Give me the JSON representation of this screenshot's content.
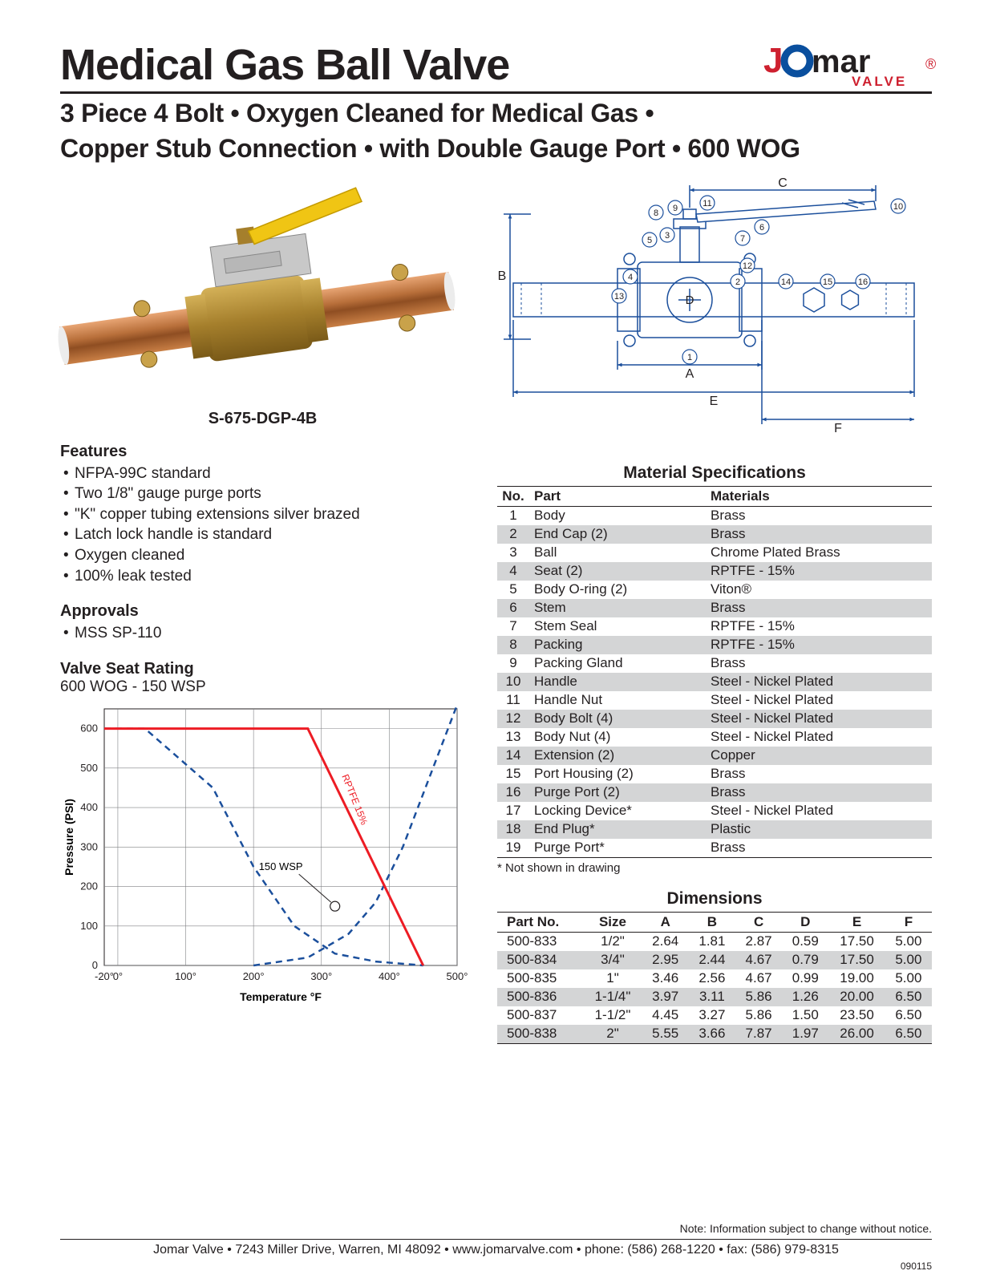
{
  "header": {
    "title": "Medical Gas Ball Valve",
    "subtitle_line1": "3 Piece 4 Bolt • Oxygen Cleaned for Medical Gas •",
    "subtitle_line2": "Copper Stub Connection • with Double Gauge Port • 600 WOG",
    "logo_text_main": "Jomar",
    "logo_text_sub": "VALVE",
    "logo_colors": {
      "j_red": "#ce202f",
      "ring_blue": "#0a4f9e",
      "text_red": "#ce202f"
    }
  },
  "product": {
    "model": "S-675-DGP-4B",
    "photo_colors": {
      "copper": "#b86f3a",
      "brass": "#a57f2c",
      "handle": "#f0c514",
      "steel": "#b7b7b7"
    }
  },
  "features": {
    "heading": "Features",
    "items": [
      "NFPA-99C standard",
      "Two 1/8\" gauge purge ports",
      "\"K\" copper tubing extensions silver brazed",
      "Latch lock handle is standard",
      "Oxygen cleaned",
      "100% leak tested"
    ]
  },
  "approvals": {
    "heading": "Approvals",
    "items": [
      "MSS SP-110"
    ]
  },
  "chart": {
    "title": "Valve Seat Rating",
    "subtitle": "600 WOG - 150 WSP",
    "type": "line",
    "xlabel": "Temperature °F",
    "ylabel": "Pressure (PSI)",
    "x_ticks": [
      "-20°",
      "0°",
      "100°",
      "200°",
      "300°",
      "400°",
      "500°"
    ],
    "x_positions": [
      -20,
      0,
      100,
      200,
      300,
      400,
      500
    ],
    "xlim": [
      -20,
      500
    ],
    "y_ticks": [
      0,
      100,
      200,
      300,
      400,
      500,
      600
    ],
    "ylim": [
      0,
      650
    ],
    "grid_color": "#808285",
    "background_color": "#ffffff",
    "annotation_rptfe": "RPTFE 15%",
    "annotation_wsp": "150 WSP",
    "series_red": {
      "color": "#ed1c24",
      "width": 3,
      "dash": "none",
      "points": [
        [
          -20,
          600
        ],
        [
          280,
          600
        ],
        [
          450,
          0
        ]
      ]
    },
    "series_blue": {
      "color": "#1b4f9c",
      "width": 2.5,
      "dash": "8,6",
      "points": [
        [
          -20,
          600
        ],
        [
          40,
          600
        ],
        [
          140,
          450
        ],
        [
          200,
          250
        ],
        [
          260,
          100
        ],
        [
          320,
          30
        ],
        [
          380,
          10
        ],
        [
          450,
          0
        ]
      ],
      "points_rising": [
        [
          200,
          0
        ],
        [
          280,
          20
        ],
        [
          340,
          80
        ],
        [
          380,
          160
        ],
        [
          420,
          300
        ],
        [
          460,
          480
        ],
        [
          500,
          660
        ]
      ]
    },
    "callout_point": [
      320,
      150
    ],
    "label_fontsize": 13,
    "axis_fontsize": 13
  },
  "diagram": {
    "labels": [
      "A",
      "B",
      "C",
      "D",
      "E",
      "F"
    ],
    "callouts": [
      "1",
      "2",
      "3",
      "4",
      "5",
      "6",
      "7",
      "8",
      "9",
      "10",
      "11",
      "12",
      "13",
      "14",
      "15",
      "16"
    ],
    "line_color": "#1b4f9c",
    "line_width": 1.5
  },
  "materials": {
    "title": "Material Specifications",
    "columns": [
      "No.",
      "Part",
      "Materials"
    ],
    "rows": [
      [
        "1",
        "Body",
        "Brass"
      ],
      [
        "2",
        "End Cap (2)",
        "Brass"
      ],
      [
        "3",
        "Ball",
        "Chrome Plated Brass"
      ],
      [
        "4",
        "Seat (2)",
        "RPTFE - 15%"
      ],
      [
        "5",
        "Body O-ring (2)",
        "Viton®"
      ],
      [
        "6",
        "Stem",
        "Brass"
      ],
      [
        "7",
        "Stem Seal",
        "RPTFE - 15%"
      ],
      [
        "8",
        "Packing",
        "RPTFE - 15%"
      ],
      [
        "9",
        "Packing Gland",
        "Brass"
      ],
      [
        "10",
        "Handle",
        "Steel - Nickel Plated"
      ],
      [
        "11",
        "Handle Nut",
        "Steel - Nickel Plated"
      ],
      [
        "12",
        "Body Bolt (4)",
        "Steel - Nickel Plated"
      ],
      [
        "13",
        "Body Nut (4)",
        "Steel - Nickel Plated"
      ],
      [
        "14",
        "Extension (2)",
        "Copper"
      ],
      [
        "15",
        "Port Housing (2)",
        "Brass"
      ],
      [
        "16",
        "Purge Port (2)",
        "Brass"
      ],
      [
        "17",
        "Locking Device*",
        "Steel - Nickel Plated"
      ],
      [
        "18",
        "End Plug*",
        "Plastic"
      ],
      [
        "19",
        "Purge Port*",
        "Brass"
      ]
    ],
    "footnote": "* Not shown in drawing"
  },
  "dimensions": {
    "title": "Dimensions",
    "columns": [
      "Part No.",
      "Size",
      "A",
      "B",
      "C",
      "D",
      "E",
      "F"
    ],
    "rows": [
      [
        "500-833",
        "1/2\"",
        "2.64",
        "1.81",
        "2.87",
        "0.59",
        "17.50",
        "5.00"
      ],
      [
        "500-834",
        "3/4\"",
        "2.95",
        "2.44",
        "4.67",
        "0.79",
        "17.50",
        "5.00"
      ],
      [
        "500-835",
        "1\"",
        "3.46",
        "2.56",
        "4.67",
        "0.99",
        "19.00",
        "5.00"
      ],
      [
        "500-836",
        "1-1/4\"",
        "3.97",
        "3.11",
        "5.86",
        "1.26",
        "20.00",
        "6.50"
      ],
      [
        "500-837",
        "1-1/2\"",
        "4.45",
        "3.27",
        "5.86",
        "1.50",
        "23.50",
        "6.50"
      ],
      [
        "500-838",
        "2\"",
        "5.55",
        "3.66",
        "7.87",
        "1.97",
        "26.00",
        "6.50"
      ]
    ]
  },
  "footer": {
    "note": "Note: Information subject to change without notice.",
    "line": "Jomar Valve  •  7243 Miller Drive, Warren, MI 48092  •  www.jomarvalve.com  •  phone: (586) 268-1220  •  fax: (586) 979-8315",
    "docid": "090115"
  }
}
